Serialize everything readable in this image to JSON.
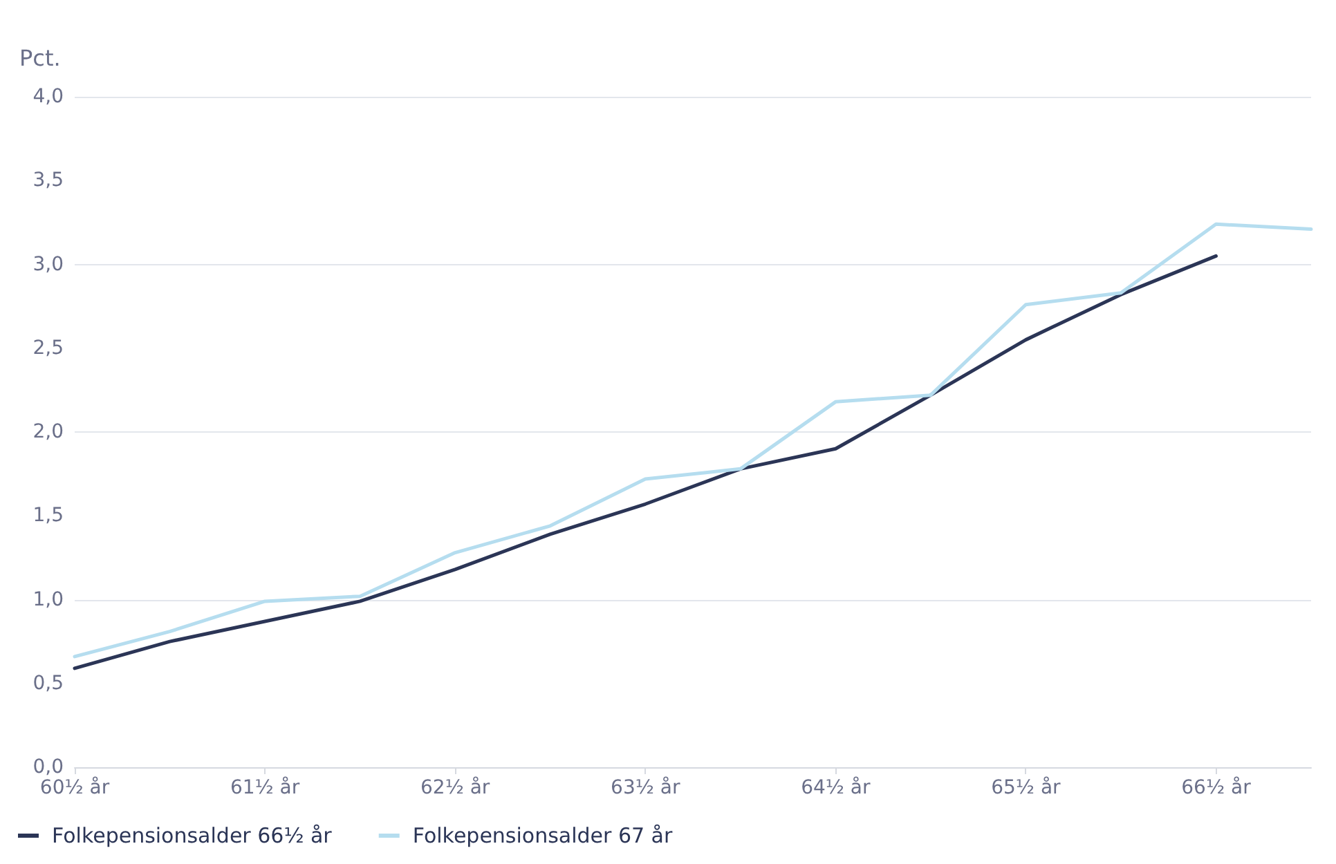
{
  "chart_data": {
    "type": "line",
    "ylabel": "Pct.",
    "categories": [
      "60½ år",
      null,
      "61½ år",
      null,
      "62½ år",
      null,
      "63½ år",
      null,
      "64½ år",
      null,
      "65½ år",
      null,
      "66½ år",
      null
    ],
    "series": [
      {
        "name": "Folkepensionsalder 66½ år",
        "color": "#2b3556",
        "values": [
          0.59,
          0.75,
          0.87,
          0.99,
          1.18,
          1.39,
          1.57,
          1.78,
          1.9,
          2.22,
          2.55,
          2.82,
          3.05,
          null
        ]
      },
      {
        "name": "Folkepensionsalder 67 år",
        "color": "#b5ddef",
        "values": [
          0.66,
          0.81,
          0.99,
          1.02,
          1.28,
          1.44,
          1.72,
          1.78,
          2.18,
          2.22,
          2.76,
          2.83,
          3.24,
          3.21
        ]
      }
    ],
    "ylim": [
      0,
      4
    ],
    "yticks": [
      {
        "value": 0,
        "label": "0,0"
      },
      {
        "value": 0.5,
        "label": "0,5"
      },
      {
        "value": 1,
        "label": "1,0"
      },
      {
        "value": 1.5,
        "label": "1,5"
      },
      {
        "value": 2,
        "label": "2,0"
      },
      {
        "value": 2.5,
        "label": "2,5"
      },
      {
        "value": 3,
        "label": "3,0"
      },
      {
        "value": 3.5,
        "label": "3,5"
      },
      {
        "value": 4,
        "label": "4,0"
      }
    ],
    "grid": "y",
    "legend": "bottom left",
    "marker": "none",
    "line_style": "solid"
  }
}
